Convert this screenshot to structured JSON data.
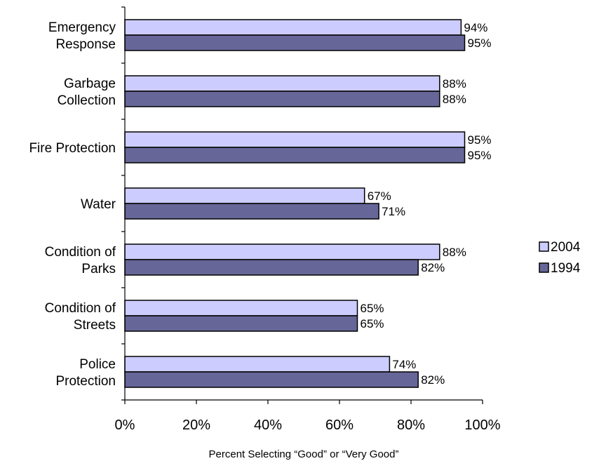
{
  "chart_data": {
    "type": "bar",
    "orientation": "horizontal",
    "categories": [
      [
        "Emergency",
        "Response"
      ],
      [
        "Garbage",
        "Collection"
      ],
      [
        "Fire Protection"
      ],
      [
        "Water"
      ],
      [
        "Condition of",
        "Parks"
      ],
      [
        "Condition of",
        "Streets"
      ],
      [
        "Police",
        "Protection"
      ]
    ],
    "series": [
      {
        "name": "2004",
        "color": "#ccccff",
        "values": [
          94,
          88,
          95,
          67,
          88,
          65,
          74
        ],
        "labels": [
          "94%",
          "88%",
          "95%",
          "67%",
          "88%",
          "65%",
          "74%"
        ]
      },
      {
        "name": "1994",
        "color": "#666699",
        "values": [
          95,
          88,
          95,
          71,
          82,
          65,
          82
        ],
        "labels": [
          "95%",
          "88%",
          "95%",
          "71%",
          "82%",
          "65%",
          "82%"
        ]
      }
    ],
    "xlim": [
      0,
      100
    ],
    "xticks": [
      "0%",
      "20%",
      "40%",
      "60%",
      "80%",
      "100%"
    ],
    "xlabel": "Percent Selecting “Good” or “Very Good”",
    "ylabel": "",
    "title": "",
    "grid": false,
    "legend_position": "right"
  }
}
